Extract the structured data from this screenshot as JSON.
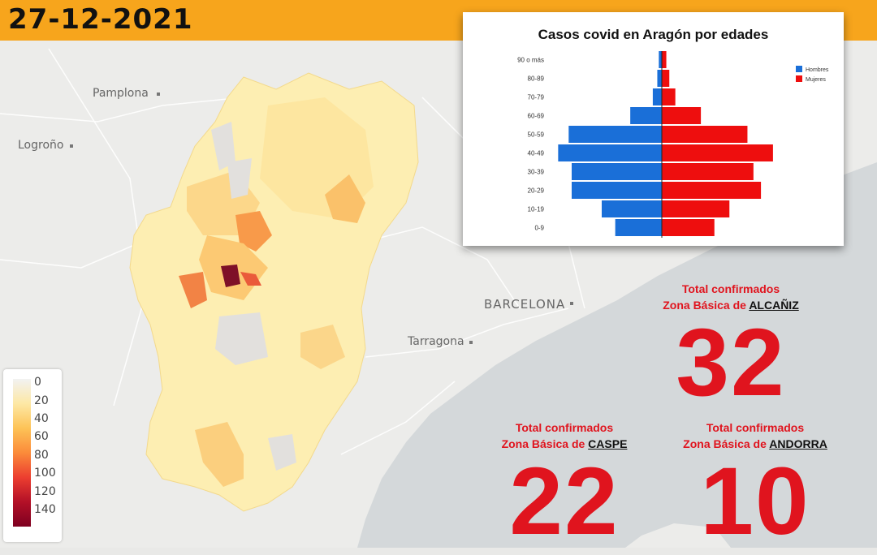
{
  "date": "27-12-2021",
  "cities": [
    {
      "name": "Pamplona",
      "cls": ""
    },
    {
      "name": "Logroño",
      "cls": ""
    },
    {
      "name": "BARCELONA",
      "cls": "big"
    },
    {
      "name": "Tarragona",
      "cls": ""
    }
  ],
  "legend": {
    "labels": [
      "0",
      "20",
      "40",
      "60",
      "80",
      "100",
      "120",
      "140"
    ]
  },
  "colors": {
    "hombres": "#1a6fd8",
    "mujeres": "#ee0e0e",
    "accent": "#f7a51c",
    "total_red": "#e0141e"
  },
  "chart_data": {
    "type": "bar",
    "orientation": "horizontal-pyramid",
    "title": "Casos covid en Aragón por edades",
    "categories": [
      "90 o más",
      "80-89",
      "70-79",
      "60-69",
      "50-59",
      "40-49",
      "30-39",
      "20-29",
      "10-19",
      "0-9"
    ],
    "series": [
      {
        "name": "Hombres",
        "values": [
          2,
          3,
          6,
          21,
          62,
          69,
          60,
          60,
          40,
          31
        ]
      },
      {
        "name": "Mujeres",
        "values": [
          3,
          5,
          9,
          26,
          57,
          74,
          61,
          66,
          45,
          35
        ]
      }
    ],
    "legend": "top-right"
  },
  "totals": [
    {
      "line1": "Total confirmados",
      "prefix": "Zona Básica de ",
      "zone": "ALCAÑIZ",
      "value": "32"
    },
    {
      "line1": "Total confirmados",
      "prefix": "Zona Básica de ",
      "zone": "CASPE",
      "value": "22"
    },
    {
      "line1": "Total confirmados",
      "prefix": "Zona Básica de ",
      "zone": "ANDORRA",
      "value": "10"
    }
  ]
}
